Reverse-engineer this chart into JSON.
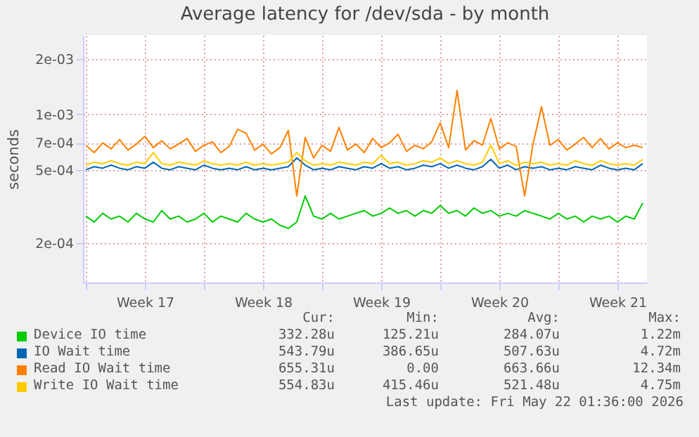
{
  "chart_data": {
    "type": "line",
    "title": "Average latency for /dev/sda - by month",
    "ylabel": "seconds",
    "log": "y",
    "grid": true,
    "legend": "bottom",
    "xlim": [
      "2026-04-19T20:00",
      "2026-05-23T06:00"
    ],
    "xticks": [
      {
        "value": "2026-04-20",
        "label": null
      },
      {
        "value": "2026-04-23T12:00",
        "label": "Week 17"
      },
      {
        "value": "2026-04-27",
        "label": null
      },
      {
        "value": "2026-04-30T12:00",
        "label": "Week 18"
      },
      {
        "value": "2026-05-04",
        "label": null
      },
      {
        "value": "2026-05-07T12:00",
        "label": "Week 19"
      },
      {
        "value": "2026-05-11",
        "label": null
      },
      {
        "value": "2026-05-14T12:00",
        "label": "Week 20"
      },
      {
        "value": "2026-05-18",
        "label": null
      },
      {
        "value": "2026-05-21T12:00",
        "label": "Week 21"
      }
    ],
    "ylim": [
      0.000122,
      0.0027
    ],
    "yticks": [
      {
        "value": 0.0002,
        "label": "2e-04"
      },
      {
        "value": 0.0005,
        "label": "5e-04"
      },
      {
        "value": 0.0007,
        "label": "7e-04"
      },
      {
        "value": 0.001,
        "label": "1e-03"
      },
      {
        "value": 0.002,
        "label": "2e-03"
      }
    ],
    "x": [
      "2026-04-20T00:00",
      "2026-04-20T12:00",
      "2026-04-21T00:00",
      "2026-04-21T12:00",
      "2026-04-22T00:00",
      "2026-04-22T12:00",
      "2026-04-23T00:00",
      "2026-04-23T12:00",
      "2026-04-24T00:00",
      "2026-04-24T12:00",
      "2026-04-25T00:00",
      "2026-04-25T12:00",
      "2026-04-26T00:00",
      "2026-04-26T12:00",
      "2026-04-27T00:00",
      "2026-04-27T12:00",
      "2026-04-28T00:00",
      "2026-04-28T12:00",
      "2026-04-29T00:00",
      "2026-04-29T12:00",
      "2026-04-30T00:00",
      "2026-04-30T12:00",
      "2026-05-01T00:00",
      "2026-05-01T12:00",
      "2026-05-02T00:00",
      "2026-05-02T12:00",
      "2026-05-03T00:00",
      "2026-05-03T12:00",
      "2026-05-04T00:00",
      "2026-05-04T12:00",
      "2026-05-05T00:00",
      "2026-05-05T12:00",
      "2026-05-06T00:00",
      "2026-05-06T12:00",
      "2026-05-07T00:00",
      "2026-05-07T12:00",
      "2026-05-08T00:00",
      "2026-05-08T12:00",
      "2026-05-09T00:00",
      "2026-05-09T12:00",
      "2026-05-10T00:00",
      "2026-05-10T12:00",
      "2026-05-11T00:00",
      "2026-05-11T12:00",
      "2026-05-12T00:00",
      "2026-05-12T12:00",
      "2026-05-13T00:00",
      "2026-05-13T12:00",
      "2026-05-14T00:00",
      "2026-05-14T12:00",
      "2026-05-15T00:00",
      "2026-05-15T12:00",
      "2026-05-16T00:00",
      "2026-05-16T12:00",
      "2026-05-17T00:00",
      "2026-05-17T12:00",
      "2026-05-18T00:00",
      "2026-05-18T12:00",
      "2026-05-19T00:00",
      "2026-05-19T12:00",
      "2026-05-20T00:00",
      "2026-05-20T12:00",
      "2026-05-21T00:00",
      "2026-05-21T12:00",
      "2026-05-22T00:00",
      "2026-05-22T12:00",
      "2026-05-23T00:00"
    ],
    "series": [
      {
        "name": "Device IO time",
        "color": "#00cc00",
        "values": [
          0.00028,
          0.00026,
          0.00029,
          0.00027,
          0.00028,
          0.00026,
          0.00029,
          0.00027,
          0.00026,
          0.0003,
          0.00027,
          0.00028,
          0.00026,
          0.00027,
          0.00029,
          0.00026,
          0.00028,
          0.00027,
          0.00026,
          0.00029,
          0.00027,
          0.00026,
          0.00027,
          0.00025,
          0.00024,
          0.00026,
          0.00036,
          0.00028,
          0.00027,
          0.00029,
          0.00027,
          0.00028,
          0.00029,
          0.0003,
          0.00028,
          0.00029,
          0.00031,
          0.00029,
          0.0003,
          0.00028,
          0.0003,
          0.00029,
          0.00032,
          0.00029,
          0.0003,
          0.00028,
          0.00031,
          0.00029,
          0.0003,
          0.00028,
          0.00029,
          0.00028,
          0.0003,
          0.00029,
          0.00028,
          0.00027,
          0.00029,
          0.00027,
          0.00028,
          0.00026,
          0.00028,
          0.00027,
          0.00028,
          0.00026,
          0.00028,
          0.00027,
          0.00033
        ]
      },
      {
        "name": "IO Wait time",
        "color": "#0066b3",
        "values": [
          0.0005,
          0.00052,
          0.00051,
          0.00053,
          0.00051,
          0.0005,
          0.00052,
          0.00051,
          0.00055,
          0.00051,
          0.0005,
          0.00052,
          0.00051,
          0.0005,
          0.00053,
          0.00051,
          0.0005,
          0.00051,
          0.0005,
          0.00052,
          0.0005,
          0.00051,
          0.0005,
          0.00051,
          0.00052,
          0.00058,
          0.00053,
          0.0005,
          0.00051,
          0.0005,
          0.00052,
          0.00051,
          0.0005,
          0.00052,
          0.00051,
          0.00054,
          0.00051,
          0.00052,
          0.0005,
          0.00051,
          0.00053,
          0.00052,
          0.00054,
          0.00051,
          0.00053,
          0.00051,
          0.0005,
          0.00052,
          0.00057,
          0.00051,
          0.00053,
          0.0005,
          0.00052,
          0.00051,
          0.00052,
          0.0005,
          0.00051,
          0.0005,
          0.00052,
          0.00051,
          0.0005,
          0.00053,
          0.00051,
          0.0005,
          0.00051,
          0.0005,
          0.00054
        ]
      },
      {
        "name": "Read IO Wait time",
        "color": "#ff8000",
        "values": [
          0.00068,
          0.00062,
          0.0007,
          0.00065,
          0.00073,
          0.00064,
          0.00069,
          0.00076,
          0.00066,
          0.00072,
          0.00065,
          0.00069,
          0.00074,
          0.00063,
          0.00068,
          0.00071,
          0.00062,
          0.00067,
          0.00083,
          0.00079,
          0.00064,
          0.00069,
          0.00061,
          0.00066,
          0.00082,
          0.00036,
          0.00075,
          0.00058,
          0.00068,
          0.00063,
          0.00085,
          0.00064,
          0.00069,
          0.00062,
          0.00074,
          0.00066,
          0.0007,
          0.00078,
          0.00063,
          0.00068,
          0.00065,
          0.00071,
          0.0009,
          0.00066,
          0.00135,
          0.00064,
          0.00072,
          0.00068,
          0.00095,
          0.00065,
          0.0007,
          0.00067,
          0.00036,
          0.00069,
          0.0011,
          0.00068,
          0.00073,
          0.00064,
          0.00069,
          0.00075,
          0.00066,
          0.00074,
          0.00065,
          0.0007,
          0.00066,
          0.00068,
          0.00066
        ]
      },
      {
        "name": "Write IO Wait time",
        "color": "#ffcc00",
        "values": [
          0.00053,
          0.00055,
          0.00054,
          0.00056,
          0.00054,
          0.00053,
          0.00055,
          0.00054,
          0.00062,
          0.00054,
          0.00053,
          0.00055,
          0.00054,
          0.00053,
          0.00056,
          0.00054,
          0.00053,
          0.00054,
          0.00053,
          0.00055,
          0.00053,
          0.00054,
          0.00053,
          0.00054,
          0.00055,
          0.00062,
          0.00056,
          0.00053,
          0.00054,
          0.00053,
          0.00055,
          0.00054,
          0.00053,
          0.00055,
          0.00054,
          0.0006,
          0.00054,
          0.00055,
          0.00053,
          0.00054,
          0.00056,
          0.00055,
          0.00058,
          0.00054,
          0.00056,
          0.00054,
          0.00053,
          0.00055,
          0.00068,
          0.00054,
          0.00056,
          0.00053,
          0.00055,
          0.00054,
          0.00055,
          0.00053,
          0.00054,
          0.00053,
          0.00056,
          0.00054,
          0.00053,
          0.00056,
          0.00054,
          0.00053,
          0.00054,
          0.00053,
          0.00057
        ]
      }
    ],
    "annotations": [
      "Cur:",
      "Min:",
      "Avg:",
      "Max:",
      "332.28u",
      "125.21u",
      "284.07u",
      "1.22m",
      "543.79u",
      "386.65u",
      "507.63u",
      "4.72m",
      "655.31u",
      "0.00",
      "663.66u",
      "12.34m",
      "554.83u",
      "415.46u",
      "521.48u",
      "4.75m",
      "Last update: Fri May 22 01:36:00 2026"
    ]
  }
}
